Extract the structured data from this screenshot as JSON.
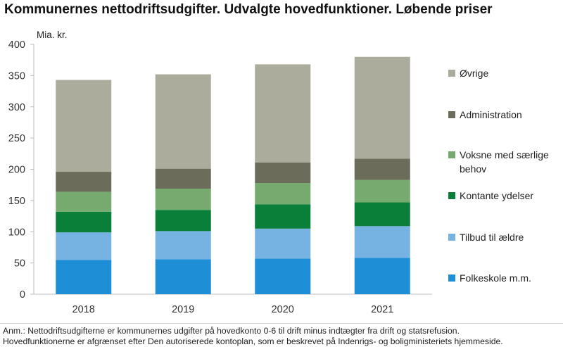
{
  "title": "Kommunernes nettodriftsudgifter. Udvalgte hovedfunktioner. Løbende priser",
  "chart_data": {
    "type": "bar",
    "stacked": true,
    "unit_label": "Mia. kr.",
    "categories": [
      "2018",
      "2019",
      "2020",
      "2021"
    ],
    "ylim": [
      0,
      400
    ],
    "yticks": [
      0,
      50,
      100,
      150,
      200,
      250,
      300,
      350,
      400
    ],
    "grid": false,
    "legend_position": "right",
    "series": [
      {
        "name": "Folkeskole m.m.",
        "color": "#1e8fd6",
        "values": [
          55,
          56,
          57,
          58
        ]
      },
      {
        "name": "Tilbud til ældre",
        "color": "#76b3e3",
        "values": [
          44,
          45,
          48,
          51
        ]
      },
      {
        "name": "Kontante ydelser",
        "color": "#0a7f3a",
        "values": [
          33,
          34,
          39,
          38
        ]
      },
      {
        "name": "Voksne med særlige behov",
        "color": "#76aa6e",
        "values": [
          32,
          34,
          34,
          36
        ]
      },
      {
        "name": "Administration",
        "color": "#6c6c5a",
        "values": [
          32,
          32,
          33,
          34
        ]
      },
      {
        "name": "Øvrige",
        "color": "#acac9c",
        "values": [
          147,
          151,
          157,
          163
        ]
      }
    ]
  },
  "notes": [
    "Anm.: Nettodriftsudgifterne er kommunernes udgifter på hovedkonto 0-6 til drift minus indtægter fra drift og statsrefusion.",
    "Hovedfunktionerne er afgrænset efter Den autoriserede kontoplan, som er beskrevet på Indenrigs- og boligministeriets hjemmeside."
  ]
}
